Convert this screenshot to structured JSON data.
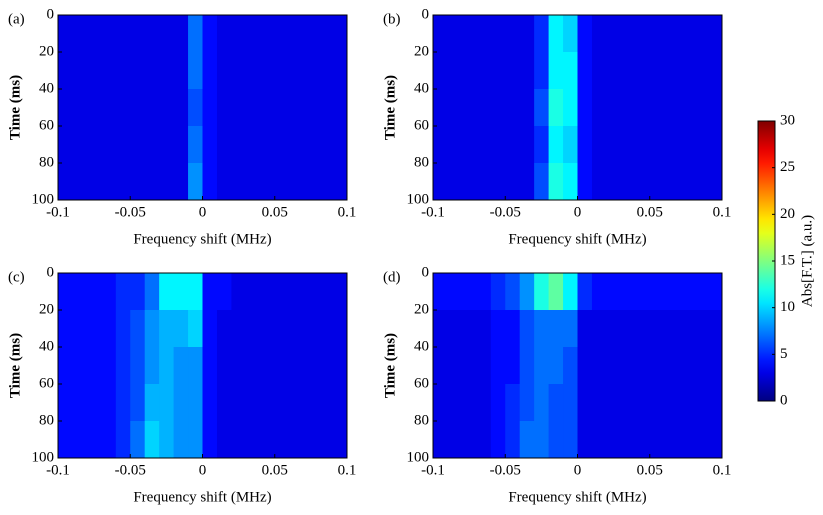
{
  "chart_data": [
    {
      "type": "heatmap",
      "panel": "(a)",
      "xlabel": "Frequency shift (MHz)",
      "ylabel": "Time (ms)",
      "xlim": [
        -0.1,
        0.1
      ],
      "xticks": [
        -0.1,
        -0.05,
        0,
        0.05,
        0.1
      ],
      "ylim": [
        100,
        0
      ],
      "yticks": [
        0,
        20,
        40,
        60,
        80,
        100
      ],
      "x": [
        -0.095,
        -0.085,
        -0.075,
        -0.065,
        -0.055,
        -0.045,
        -0.035,
        -0.025,
        -0.015,
        -0.005,
        0.005,
        0.015,
        0.025,
        0.035,
        0.045,
        0.055,
        0.065,
        0.075,
        0.085,
        0.095
      ],
      "y": [
        10,
        30,
        50,
        70,
        90
      ],
      "values": [
        [
          3,
          3,
          3,
          3,
          3,
          3,
          3,
          3,
          3,
          7,
          4,
          3,
          3,
          3,
          3,
          3,
          3,
          3,
          3,
          3
        ],
        [
          3,
          3,
          3,
          3,
          3,
          3,
          3,
          3,
          3,
          7,
          4,
          3,
          3,
          3,
          3,
          3,
          3,
          3,
          3,
          3
        ],
        [
          3,
          3,
          3,
          3,
          3,
          3,
          3,
          3,
          3,
          6,
          4,
          3,
          3,
          3,
          3,
          3,
          3,
          3,
          3,
          3
        ],
        [
          3,
          3,
          3,
          3,
          3,
          3,
          3,
          3,
          3,
          7,
          4,
          3,
          3,
          3,
          3,
          3,
          3,
          3,
          3,
          3
        ],
        [
          3,
          3,
          3,
          3,
          3,
          3,
          3,
          3,
          3,
          8,
          4,
          3,
          3,
          3,
          3,
          3,
          3,
          3,
          3,
          3
        ]
      ]
    },
    {
      "type": "heatmap",
      "panel": "(b)",
      "xlabel": "Frequency shift (MHz)",
      "ylabel": "Time (ms)",
      "xlim": [
        -0.1,
        0.1
      ],
      "xticks": [
        -0.1,
        -0.05,
        0,
        0.05,
        0.1
      ],
      "ylim": [
        100,
        0
      ],
      "yticks": [
        0,
        20,
        40,
        60,
        80,
        100
      ],
      "x": [
        -0.095,
        -0.085,
        -0.075,
        -0.065,
        -0.055,
        -0.045,
        -0.035,
        -0.025,
        -0.015,
        -0.005,
        0.005,
        0.015,
        0.025,
        0.035,
        0.045,
        0.055,
        0.065,
        0.075,
        0.085,
        0.095
      ],
      "y": [
        10,
        30,
        50,
        70,
        90
      ],
      "values": [
        [
          3,
          3,
          3,
          3,
          3,
          3,
          3,
          5,
          11,
          10,
          4,
          3,
          3,
          3,
          3,
          3,
          3,
          3,
          3,
          3
        ],
        [
          3,
          3,
          3,
          3,
          3,
          3,
          3,
          5,
          11,
          11,
          4,
          3,
          3,
          3,
          3,
          3,
          3,
          3,
          3,
          3
        ],
        [
          3,
          3,
          3,
          3,
          3,
          3,
          3,
          6,
          12,
          11,
          4,
          3,
          3,
          3,
          3,
          3,
          3,
          3,
          3,
          3
        ],
        [
          3,
          3,
          3,
          3,
          3,
          3,
          3,
          5,
          11,
          10,
          4,
          3,
          3,
          3,
          3,
          3,
          3,
          3,
          3,
          3
        ],
        [
          3,
          3,
          3,
          3,
          3,
          3,
          3,
          6,
          12,
          11,
          4,
          3,
          3,
          3,
          3,
          3,
          3,
          3,
          3,
          3
        ]
      ]
    },
    {
      "type": "heatmap",
      "panel": "(c)",
      "xlabel": "Frequency shift (MHz)",
      "ylabel": "Time (ms)",
      "xlim": [
        -0.1,
        0.1
      ],
      "xticks": [
        -0.1,
        -0.05,
        0,
        0.05,
        0.1
      ],
      "ylim": [
        100,
        0
      ],
      "yticks": [
        0,
        20,
        40,
        60,
        80,
        100
      ],
      "x": [
        -0.095,
        -0.085,
        -0.075,
        -0.065,
        -0.055,
        -0.045,
        -0.035,
        -0.025,
        -0.015,
        -0.005,
        0.005,
        0.015,
        0.025,
        0.035,
        0.045,
        0.055,
        0.065,
        0.075,
        0.085,
        0.095
      ],
      "y": [
        10,
        30,
        50,
        70,
        90
      ],
      "values": [
        [
          4,
          4,
          4,
          4,
          5,
          5,
          7,
          11,
          11,
          11,
          4,
          4,
          3,
          3,
          3,
          3,
          3,
          3,
          3,
          3
        ],
        [
          4,
          4,
          4,
          4,
          5,
          6,
          8,
          9,
          9,
          10,
          4,
          3,
          3,
          3,
          3,
          3,
          3,
          3,
          3,
          3
        ],
        [
          4,
          4,
          4,
          4,
          5,
          6,
          8,
          9,
          8,
          8,
          4,
          3,
          3,
          3,
          3,
          3,
          3,
          3,
          3,
          3
        ],
        [
          4,
          4,
          4,
          4,
          5,
          6,
          9,
          9,
          8,
          8,
          4,
          3,
          3,
          3,
          3,
          3,
          3,
          3,
          3,
          3
        ],
        [
          4,
          4,
          4,
          4,
          5,
          7,
          10,
          9,
          8,
          8,
          4,
          3,
          3,
          3,
          3,
          3,
          3,
          3,
          3,
          3
        ]
      ]
    },
    {
      "type": "heatmap",
      "panel": "(d)",
      "xlabel": "Frequency shift (MHz)",
      "ylabel": "Time (ms)",
      "xlim": [
        -0.1,
        0.1
      ],
      "xticks": [
        -0.1,
        -0.05,
        0,
        0.05,
        0.1
      ],
      "ylim": [
        100,
        0
      ],
      "yticks": [
        0,
        20,
        40,
        60,
        80,
        100
      ],
      "x": [
        -0.095,
        -0.085,
        -0.075,
        -0.065,
        -0.055,
        -0.045,
        -0.035,
        -0.025,
        -0.015,
        -0.005,
        0.005,
        0.015,
        0.025,
        0.035,
        0.045,
        0.055,
        0.065,
        0.075,
        0.085,
        0.095
      ],
      "y": [
        10,
        30,
        50,
        70,
        90
      ],
      "values": [
        [
          4,
          4,
          4,
          4,
          5,
          6,
          8,
          12,
          14,
          11,
          5,
          4,
          4,
          4,
          4,
          4,
          4,
          4,
          4,
          4
        ],
        [
          3,
          3,
          3,
          3,
          4,
          4,
          6,
          7,
          7,
          7,
          3,
          3,
          3,
          3,
          3,
          3,
          3,
          3,
          3,
          3
        ],
        [
          3,
          3,
          3,
          3,
          4,
          4,
          6,
          7,
          7,
          6,
          3,
          3,
          3,
          3,
          3,
          3,
          3,
          3,
          3,
          3
        ],
        [
          3,
          3,
          3,
          3,
          4,
          5,
          6,
          7,
          6,
          6,
          3,
          3,
          3,
          3,
          3,
          3,
          3,
          3,
          3,
          3
        ],
        [
          3,
          3,
          3,
          3,
          4,
          5,
          7,
          7,
          6,
          6,
          3,
          3,
          3,
          3,
          3,
          3,
          3,
          3,
          3,
          3
        ]
      ]
    }
  ],
  "colorbar": {
    "label": "Abs[F.T.] (a.u.)",
    "colormap": "jet",
    "zlim": [
      0,
      30
    ],
    "zticks": [
      0,
      5,
      10,
      15,
      20,
      25,
      30
    ]
  }
}
